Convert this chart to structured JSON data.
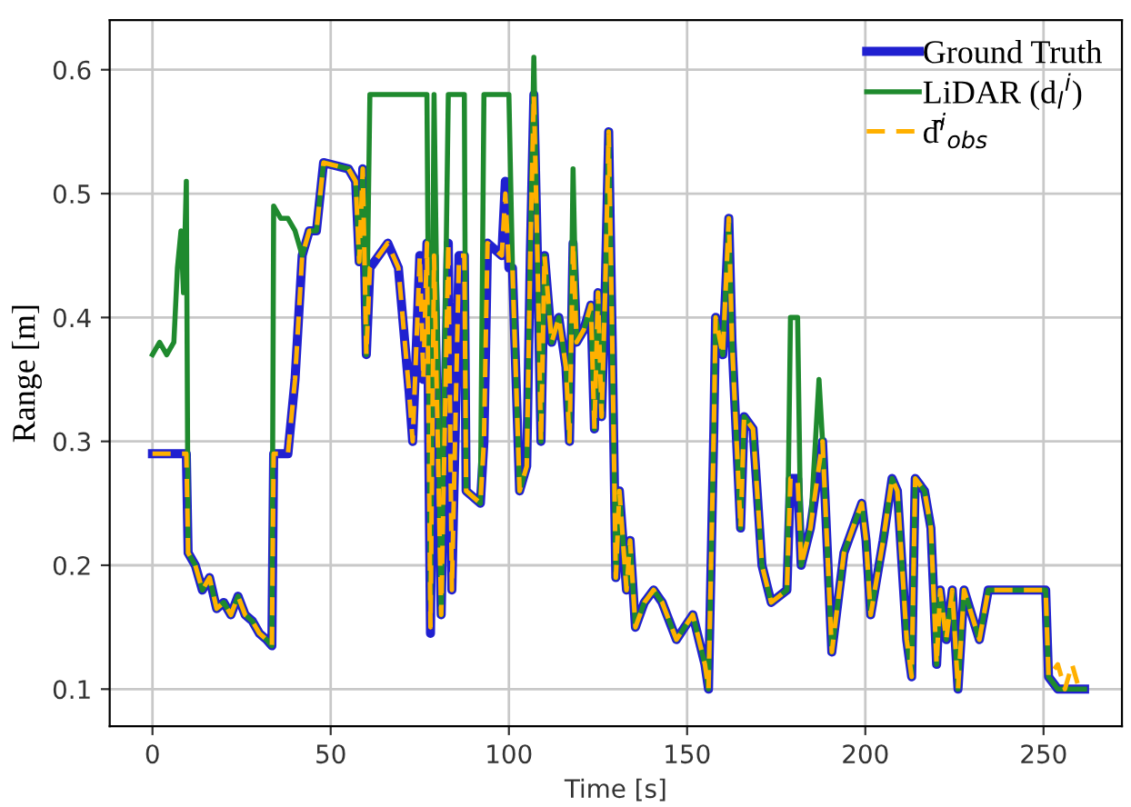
{
  "chart_data": {
    "type": "line",
    "xlabel": "Time [s]",
    "ylabel": "Range [m]",
    "x": [
      0,
      2,
      4,
      6,
      7,
      8,
      8.7,
      9.5,
      10,
      12,
      14,
      16,
      18,
      20,
      22,
      24,
      26,
      28,
      30,
      32,
      33.5,
      34,
      36,
      38,
      40,
      42,
      44,
      46,
      48,
      55,
      57,
      58,
      59,
      60,
      61,
      66,
      69,
      72,
      73,
      75,
      76,
      77,
      78,
      79,
      81,
      83,
      84,
      86,
      87.5,
      88,
      92,
      93,
      94,
      98,
      99,
      100,
      101,
      103,
      105,
      106,
      107,
      108,
      109,
      110,
      112,
      114,
      116,
      117,
      118,
      119,
      121,
      123,
      124,
      125,
      126,
      127,
      128,
      129,
      130,
      131,
      133,
      134,
      135.5,
      138,
      140.6,
      143,
      147,
      151.6,
      155,
      156,
      157.5,
      158,
      160,
      161.7,
      162.6,
      165,
      166,
      168.5,
      171,
      173.6,
      178,
      179,
      181,
      182,
      184.6,
      187,
      188,
      190.6,
      194,
      199,
      200.2,
      201.5,
      205,
      207.5,
      209,
      211.6,
      213,
      214,
      216.6,
      218.4,
      220,
      221,
      222.7,
      224.4,
      226,
      227.7,
      232,
      234.5,
      250.6,
      251.4,
      254,
      256,
      258,
      260,
      261.5
    ],
    "series": [
      {
        "name": "Ground Truth",
        "color": "#2020d0",
        "line_style": "solid",
        "values": [
          0.29,
          0.29,
          0.29,
          0.29,
          0.29,
          0.29,
          0.29,
          0.29,
          0.21,
          0.2,
          0.18,
          0.19,
          0.165,
          0.17,
          0.16,
          0.175,
          0.16,
          0.155,
          0.145,
          0.14,
          0.135,
          0.29,
          0.29,
          0.29,
          0.35,
          0.45,
          0.47,
          0.47,
          0.525,
          0.52,
          0.51,
          0.445,
          0.52,
          0.37,
          0.44,
          0.46,
          0.44,
          0.34,
          0.3,
          0.45,
          0.35,
          0.46,
          0.145,
          0.45,
          0.16,
          0.46,
          0.18,
          0.45,
          0.45,
          0.26,
          0.25,
          0.3,
          0.46,
          0.45,
          0.51,
          0.44,
          0.44,
          0.26,
          0.28,
          0.45,
          0.58,
          0.45,
          0.3,
          0.45,
          0.38,
          0.4,
          0.36,
          0.3,
          0.46,
          0.38,
          0.39,
          0.41,
          0.31,
          0.42,
          0.32,
          0.42,
          0.55,
          0.38,
          0.19,
          0.26,
          0.18,
          0.22,
          0.15,
          0.17,
          0.18,
          0.17,
          0.14,
          0.16,
          0.12,
          0.1,
          0.31,
          0.4,
          0.37,
          0.48,
          0.38,
          0.23,
          0.32,
          0.31,
          0.2,
          0.17,
          0.18,
          0.27,
          0.27,
          0.2,
          0.23,
          0.28,
          0.3,
          0.13,
          0.21,
          0.25,
          0.22,
          0.16,
          0.22,
          0.27,
          0.26,
          0.14,
          0.11,
          0.27,
          0.26,
          0.23,
          0.12,
          0.18,
          0.14,
          0.18,
          0.1,
          0.18,
          0.14,
          0.18,
          0.18,
          0.11,
          0.1,
          0.1,
          0.1,
          0.1,
          0.1
        ]
      },
      {
        "name": "LiDAR (d$_{l}$$^{i}$)",
        "color": "#1f8a2e",
        "line_style": "solid",
        "values": [
          0.37,
          0.38,
          0.37,
          0.38,
          0.44,
          0.47,
          0.42,
          0.51,
          0.21,
          0.2,
          0.18,
          0.19,
          0.165,
          0.17,
          0.16,
          0.175,
          0.16,
          0.155,
          0.145,
          0.14,
          0.135,
          0.49,
          0.48,
          0.48,
          0.47,
          0.45,
          0.47,
          0.47,
          0.525,
          0.52,
          0.51,
          0.445,
          0.52,
          0.37,
          0.58,
          0.58,
          0.58,
          0.58,
          0.58,
          0.58,
          0.58,
          0.58,
          0.17,
          0.58,
          0.16,
          0.58,
          0.58,
          0.58,
          0.58,
          0.26,
          0.25,
          0.58,
          0.58,
          0.58,
          0.58,
          0.58,
          0.44,
          0.26,
          0.28,
          0.45,
          0.61,
          0.45,
          0.3,
          0.45,
          0.38,
          0.4,
          0.36,
          0.3,
          0.52,
          0.38,
          0.39,
          0.41,
          0.31,
          0.42,
          0.32,
          0.42,
          0.55,
          0.38,
          0.19,
          0.26,
          0.18,
          0.22,
          0.15,
          0.17,
          0.18,
          0.17,
          0.14,
          0.16,
          0.12,
          0.1,
          0.31,
          0.4,
          0.37,
          0.48,
          0.38,
          0.23,
          0.32,
          0.31,
          0.2,
          0.17,
          0.18,
          0.4,
          0.4,
          0.2,
          0.23,
          0.35,
          0.3,
          0.13,
          0.21,
          0.25,
          0.22,
          0.16,
          0.22,
          0.27,
          0.26,
          0.14,
          0.11,
          0.27,
          0.26,
          0.23,
          0.12,
          0.18,
          0.14,
          0.18,
          0.1,
          0.18,
          0.14,
          0.18,
          0.18,
          0.11,
          0.1,
          0.1,
          0.1,
          0.1,
          0.1
        ]
      },
      {
        "name": "d̂$^{i}$$_{obs}$",
        "color": "#ffb000",
        "line_style": "dashed",
        "values": [
          0.29,
          0.29,
          0.29,
          0.29,
          0.29,
          0.29,
          0.29,
          0.29,
          0.21,
          0.2,
          0.18,
          0.19,
          0.165,
          0.17,
          0.16,
          0.175,
          0.16,
          0.155,
          0.145,
          0.14,
          0.135,
          0.29,
          0.29,
          0.29,
          0.35,
          0.45,
          0.47,
          0.47,
          0.525,
          0.52,
          0.51,
          0.445,
          0.52,
          0.37,
          0.44,
          0.46,
          0.44,
          0.34,
          0.3,
          0.45,
          0.35,
          0.46,
          0.15,
          0.45,
          0.16,
          0.46,
          0.18,
          0.45,
          0.45,
          0.26,
          0.25,
          0.3,
          0.46,
          0.45,
          0.5,
          0.44,
          0.44,
          0.26,
          0.28,
          0.45,
          0.58,
          0.45,
          0.3,
          0.45,
          0.38,
          0.4,
          0.36,
          0.3,
          0.46,
          0.38,
          0.39,
          0.41,
          0.31,
          0.42,
          0.32,
          0.42,
          0.55,
          0.38,
          0.19,
          0.26,
          0.18,
          0.22,
          0.15,
          0.17,
          0.18,
          0.17,
          0.14,
          0.16,
          0.12,
          0.1,
          0.31,
          0.4,
          0.37,
          0.48,
          0.38,
          0.23,
          0.32,
          0.31,
          0.2,
          0.17,
          0.18,
          0.27,
          0.27,
          0.2,
          0.23,
          0.28,
          0.3,
          0.13,
          0.21,
          0.25,
          0.22,
          0.16,
          0.22,
          0.27,
          0.26,
          0.14,
          0.11,
          0.27,
          0.26,
          0.23,
          0.12,
          0.18,
          0.14,
          0.18,
          0.1,
          0.18,
          0.14,
          0.18,
          0.18,
          0.11,
          0.12,
          0.1,
          0.12,
          0.1,
          0.1
        ]
      }
    ],
    "xlim": [
      -12,
      272
    ],
    "ylim": [
      0.07,
      0.64
    ],
    "xticks": [
      0,
      50,
      100,
      150,
      200,
      250
    ],
    "yticks": [
      0.1,
      0.2,
      0.3,
      0.4,
      0.5,
      0.6
    ],
    "grid": true,
    "legend": "top right"
  }
}
